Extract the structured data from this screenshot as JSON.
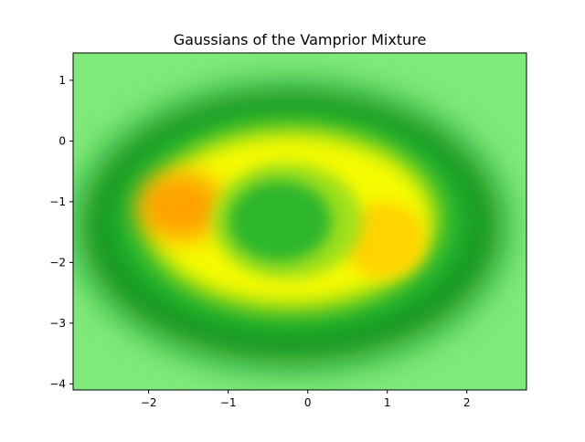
{
  "chart_data": {
    "type": "heatmap",
    "title": "Gaussians of the Vamprior Mixture",
    "xlabel": "",
    "ylabel": "",
    "xlim": [
      -2.95,
      2.75
    ],
    "ylim": [
      -4.1,
      1.45
    ],
    "xticks": [
      -2,
      -1,
      0,
      1,
      2
    ],
    "yticks": [
      1,
      0,
      -1,
      -2,
      -3,
      -4
    ],
    "xtick_labels": [
      "−2",
      "−1",
      "0",
      "1",
      "2"
    ],
    "ytick_labels": [
      "1",
      "0",
      "−1",
      "−2",
      "−3",
      "−4"
    ],
    "grid": false,
    "colorbar": false,
    "colormap": {
      "name": "green-yellow-orange",
      "stops": [
        "#80ea7c",
        "#2fc23c",
        "#0b8c14",
        "#23b22d",
        "#9fe01e",
        "#f7fb00",
        "#ffd400",
        "#ffa200"
      ]
    },
    "density_features": [
      {
        "feature": "orange hotspot",
        "x": -1.65,
        "y": -1.1,
        "level": "high"
      },
      {
        "feature": "warm lobe",
        "x": 0.95,
        "y": -1.65,
        "level": "high"
      },
      {
        "feature": "yellow ring",
        "x_center": -0.2,
        "y_center": -1.45,
        "x_radius": 1.75,
        "y_radius": 1.1,
        "level": "medium"
      },
      {
        "feature": "green center",
        "x": -0.35,
        "y": -1.35,
        "level": "low"
      },
      {
        "feature": "dark outer band",
        "x_center": -0.15,
        "y_center": -1.4,
        "x_radius": 2.55,
        "y_radius": 2.05,
        "level": "low"
      }
    ]
  }
}
